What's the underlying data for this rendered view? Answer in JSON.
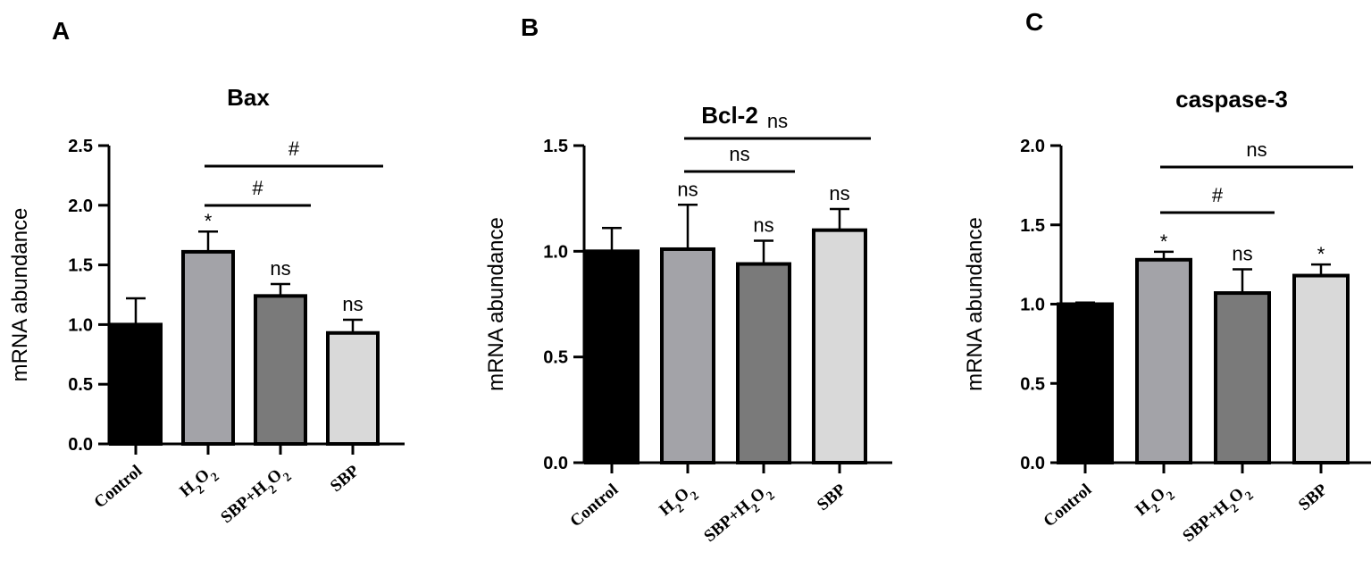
{
  "chart_data": [
    {
      "type": "bar",
      "panel": "A",
      "title": "Bax",
      "ylabel": "mRNA abundance",
      "ylim": [
        0,
        2.5
      ],
      "yticks": [
        "0.0",
        "0.5",
        "1.0",
        "1.5",
        "2.0",
        "2.5"
      ],
      "categories": [
        "Control",
        "H2O2",
        "SBP+H2O2",
        "SBP"
      ],
      "values": [
        1.0,
        1.61,
        1.24,
        0.93
      ],
      "errors": [
        0.22,
        0.17,
        0.1,
        0.11
      ],
      "fill_colors": [
        "#000000",
        "#a3a3a8",
        "#7a7a7a",
        "#d9d9d9"
      ],
      "bar_annotations": [
        "",
        "*",
        "ns",
        "ns"
      ],
      "comparisons": [
        {
          "from": "H2O2",
          "to": "SBP+H2O2",
          "label": "#"
        },
        {
          "from": "H2O2",
          "to": "SBP",
          "label": "#"
        }
      ]
    },
    {
      "type": "bar",
      "panel": "B",
      "title": "Bcl-2",
      "ylabel": "mRNA abundance",
      "ylim": [
        0,
        1.5
      ],
      "yticks": [
        "0.0",
        "0.5",
        "1.0",
        "1.5"
      ],
      "categories": [
        "Control",
        "H2O2",
        "SBP+H2O2",
        "SBP"
      ],
      "values": [
        1.0,
        1.01,
        0.94,
        1.1
      ],
      "errors": [
        0.11,
        0.21,
        0.11,
        0.1
      ],
      "fill_colors": [
        "#000000",
        "#a3a3a8",
        "#7a7a7a",
        "#d9d9d9"
      ],
      "bar_annotations": [
        "",
        "ns",
        "ns",
        "ns"
      ],
      "comparisons": [
        {
          "from": "H2O2",
          "to": "SBP+H2O2",
          "label": "ns"
        },
        {
          "from": "H2O2",
          "to": "SBP",
          "label": "ns"
        }
      ]
    },
    {
      "type": "bar",
      "panel": "C",
      "title": "caspase-3",
      "ylabel": "mRNA abundance",
      "ylim": [
        0,
        2.0
      ],
      "yticks": [
        "0.0",
        "0.5",
        "1.0",
        "1.5",
        "2.0"
      ],
      "categories": [
        "Control",
        "H2O2",
        "SBP+H2O2",
        "SBP"
      ],
      "values": [
        1.0,
        1.28,
        1.07,
        1.18
      ],
      "errors": [
        0.01,
        0.05,
        0.15,
        0.07
      ],
      "fill_colors": [
        "#000000",
        "#a3a3a8",
        "#7a7a7a",
        "#d9d9d9"
      ],
      "bar_annotations": [
        "",
        "*",
        "ns",
        "*"
      ],
      "comparisons": [
        {
          "from": "H2O2",
          "to": "SBP+H2O2",
          "label": "#"
        },
        {
          "from": "H2O2",
          "to": "SBP",
          "label": "ns"
        }
      ]
    }
  ]
}
